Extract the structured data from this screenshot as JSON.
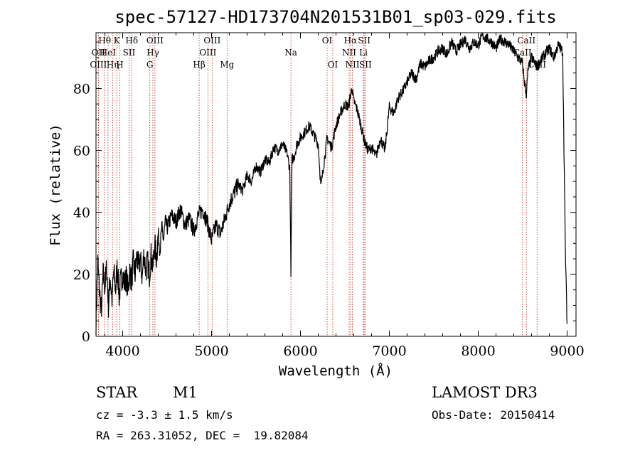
{
  "chart_data": {
    "type": "line",
    "title": "spec-57127-HD173704N201531B01_sp03-029.fits",
    "xlabel": "Wavelength (Å)",
    "ylabel": "Flux (relative)",
    "xlim": [
      3700,
      9100
    ],
    "ylim": [
      0,
      98
    ],
    "xticks": [
      4000,
      5000,
      6000,
      7000,
      8000,
      9000
    ],
    "yticks": [
      0,
      20,
      40,
      60,
      80
    ],
    "grid": false,
    "series": [
      {
        "x": [
          3700,
          3720,
          3740,
          3760,
          3780,
          3800,
          3820,
          3840,
          3860,
          3880,
          3900,
          3920,
          3940,
          3960,
          3980,
          4000,
          4020,
          4040,
          4060,
          4080,
          4100,
          4120,
          4140,
          4160,
          4180,
          4200,
          4220,
          4240,
          4260,
          4280,
          4300,
          4320,
          4340,
          4360,
          4380,
          4400,
          4420,
          4440,
          4460,
          4480,
          4500,
          4550,
          4600,
          4650,
          4700,
          4750,
          4800,
          4850,
          4900,
          4950,
          5000,
          5050,
          5100,
          5150,
          5200,
          5250,
          5300,
          5350,
          5400,
          5450,
          5500,
          5550,
          5600,
          5650,
          5700,
          5750,
          5800,
          5850,
          5880,
          5893,
          5905,
          5930,
          5960,
          6000,
          6050,
          6100,
          6150,
          6200,
          6230,
          6260,
          6300,
          6350,
          6400,
          6450,
          6500,
          6540,
          6563,
          6580,
          6600,
          6640,
          6680,
          6720,
          6760,
          6800,
          6850,
          6900,
          6950,
          7000,
          7050,
          7100,
          7150,
          7200,
          7250,
          7300,
          7350,
          7400,
          7450,
          7500,
          7550,
          7600,
          7650,
          7700,
          7750,
          7800,
          7850,
          7900,
          7950,
          8000,
          8050,
          8100,
          8150,
          8200,
          8250,
          8300,
          8350,
          8400,
          8450,
          8498,
          8520,
          8542,
          8560,
          8600,
          8662,
          8700,
          8750,
          8800,
          8850,
          8900,
          8950,
          8980,
          9000
        ],
        "y": [
          5,
          24,
          14,
          8,
          20,
          16,
          22,
          10,
          19,
          12,
          21,
          15,
          23,
          13,
          18,
          20,
          17,
          19,
          15,
          21,
          18,
          24,
          20,
          26,
          22,
          25,
          19,
          27,
          21,
          24,
          20,
          26,
          22,
          30,
          25,
          33,
          28,
          35,
          31,
          37,
          35,
          39,
          37,
          41,
          36,
          38,
          34,
          39,
          41,
          37,
          31,
          36,
          33,
          38,
          43,
          46,
          49,
          47,
          52,
          50,
          55,
          53,
          57,
          56,
          61,
          60,
          62,
          59,
          54,
          21,
          57,
          58,
          62,
          64,
          66,
          68,
          65,
          62,
          48,
          55,
          64,
          61,
          68,
          72,
          75,
          74,
          78,
          80,
          76,
          73,
          68,
          63,
          60,
          61,
          58,
          64,
          60,
          74,
          72,
          77,
          79,
          82,
          85,
          83,
          88,
          87,
          89,
          90,
          92,
          93,
          91,
          95,
          92,
          94,
          96,
          93,
          95,
          94,
          97,
          96,
          95,
          93,
          96,
          95,
          94,
          92,
          90,
          88,
          82,
          78,
          86,
          90,
          87,
          89,
          91,
          93,
          90,
          94,
          92,
          28,
          4
        ]
      }
    ],
    "line_markers": [
      {
        "label": "Hθ",
        "row": 1,
        "x": 3798
      },
      {
        "label": "OII",
        "row": 2,
        "x": 3727
      },
      {
        "label": "OIII",
        "row": 3,
        "x": 3727
      },
      {
        "label": "HeI",
        "row": 2,
        "x": 3835
      },
      {
        "label": "Hη",
        "row": 3,
        "x": 3889
      },
      {
        "label": "K",
        "row": 1,
        "x": 3934
      },
      {
        "label": "H",
        "row": 3,
        "x": 3968
      },
      {
        "label": "SII",
        "row": 2,
        "x": 4072
      },
      {
        "label": "Hδ",
        "row": 1,
        "x": 4102
      },
      {
        "label": "OIII",
        "row": 1,
        "x": 4363
      },
      {
        "label": "Hγ",
        "row": 2,
        "x": 4340
      },
      {
        "label": "G",
        "row": 3,
        "x": 4305
      },
      {
        "label": "Hβ",
        "row": 3,
        "x": 4861
      },
      {
        "label": "OIII",
        "row": 1,
        "x": 5007
      },
      {
        "label": "OIII",
        "row": 2,
        "x": 4959
      },
      {
        "label": "Mg",
        "row": 3,
        "x": 5175
      },
      {
        "label": "Na",
        "row": 2,
        "x": 5893
      },
      {
        "label": "OI",
        "row": 1,
        "x": 6300
      },
      {
        "label": "OI",
        "row": 3,
        "x": 6364
      },
      {
        "label": "Hα",
        "row": 1,
        "x": 6563
      },
      {
        "label": "NII",
        "row": 2,
        "x": 6548
      },
      {
        "label": "NII",
        "row": 3,
        "x": 6584
      },
      {
        "label": "SII",
        "row": 1,
        "x": 6717
      },
      {
        "label": "Li",
        "row": 2,
        "x": 6708
      },
      {
        "label": "SII",
        "row": 3,
        "x": 6731
      },
      {
        "label": "CaII",
        "row": 1,
        "x": 8542
      },
      {
        "label": "CaII",
        "row": 2,
        "x": 8498
      },
      {
        "label": "CaII",
        "row": 3,
        "x": 8662
      }
    ]
  },
  "info": {
    "object_class": "STAR",
    "subclass": "M1",
    "survey": "LAMOST DR3",
    "cz": "cz = -3.3 ± 1.5 km/s",
    "obs_date": "Obs-Date: 20150414",
    "radec": "RA = 263.31052, DEC =  19.82084"
  }
}
